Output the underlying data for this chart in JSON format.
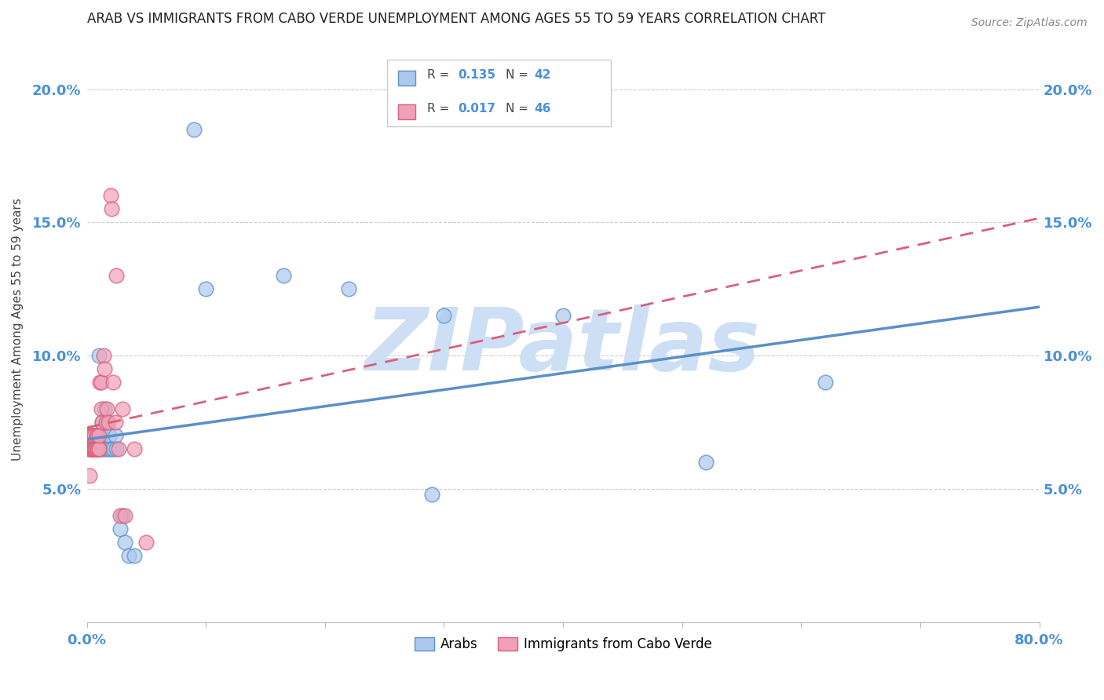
{
  "title": "ARAB VS IMMIGRANTS FROM CABO VERDE UNEMPLOYMENT AMONG AGES 55 TO 59 YEARS CORRELATION CHART",
  "source": "Source: ZipAtlas.com",
  "ylabel": "Unemployment Among Ages 55 to 59 years",
  "xlim": [
    0.0,
    0.8
  ],
  "ylim": [
    0.0,
    0.22
  ],
  "color_arab": "#adc8ed",
  "color_arab_dark": "#5a8fc9",
  "color_cabo": "#f0a0b8",
  "color_cabo_dark": "#d9607a",
  "watermark": "ZIPatlas",
  "watermark_color": "#cddff5",
  "legend_label_arab": "Arabs",
  "legend_label_cabo": "Immigrants from Cabo Verde",
  "arab_x": [
    0.003,
    0.003,
    0.004,
    0.004,
    0.005,
    0.006,
    0.006,
    0.007,
    0.007,
    0.008,
    0.008,
    0.009,
    0.01,
    0.01,
    0.01,
    0.012,
    0.012,
    0.013,
    0.014,
    0.015,
    0.016,
    0.017,
    0.018,
    0.019,
    0.02,
    0.022,
    0.024,
    0.025,
    0.028,
    0.03,
    0.032,
    0.035,
    0.04,
    0.09,
    0.1,
    0.165,
    0.22,
    0.29,
    0.3,
    0.4,
    0.52,
    0.62
  ],
  "arab_y": [
    0.065,
    0.07,
    0.065,
    0.07,
    0.065,
    0.065,
    0.07,
    0.065,
    0.07,
    0.065,
    0.065,
    0.065,
    0.065,
    0.07,
    0.1,
    0.065,
    0.07,
    0.075,
    0.065,
    0.08,
    0.065,
    0.075,
    0.065,
    0.07,
    0.065,
    0.065,
    0.07,
    0.065,
    0.035,
    0.04,
    0.03,
    0.025,
    0.025,
    0.185,
    0.125,
    0.13,
    0.125,
    0.048,
    0.115,
    0.115,
    0.06,
    0.09
  ],
  "cabo_x": [
    0.001,
    0.001,
    0.002,
    0.002,
    0.003,
    0.003,
    0.004,
    0.004,
    0.005,
    0.005,
    0.005,
    0.005,
    0.006,
    0.006,
    0.006,
    0.007,
    0.007,
    0.008,
    0.008,
    0.008,
    0.009,
    0.009,
    0.009,
    0.01,
    0.01,
    0.01,
    0.011,
    0.012,
    0.012,
    0.013,
    0.014,
    0.015,
    0.016,
    0.017,
    0.018,
    0.02,
    0.021,
    0.022,
    0.024,
    0.025,
    0.027,
    0.028,
    0.03,
    0.032,
    0.04,
    0.05
  ],
  "cabo_y": [
    0.065,
    0.07,
    0.07,
    0.055,
    0.065,
    0.065,
    0.065,
    0.07,
    0.065,
    0.065,
    0.07,
    0.07,
    0.065,
    0.07,
    0.065,
    0.065,
    0.065,
    0.065,
    0.065,
    0.07,
    0.065,
    0.065,
    0.07,
    0.065,
    0.065,
    0.07,
    0.09,
    0.08,
    0.09,
    0.075,
    0.1,
    0.095,
    0.075,
    0.08,
    0.075,
    0.16,
    0.155,
    0.09,
    0.075,
    0.13,
    0.065,
    0.04,
    0.08,
    0.04,
    0.065,
    0.03
  ]
}
